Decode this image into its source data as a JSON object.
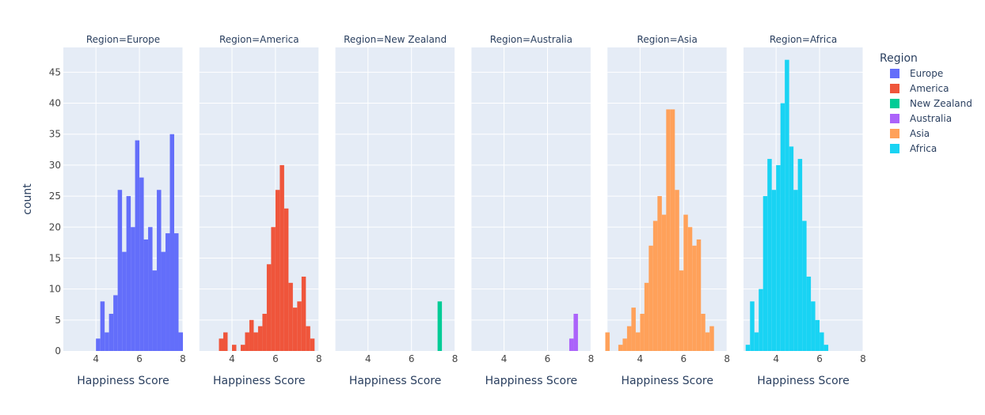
{
  "chart_data": {
    "type": "bar",
    "chart_kind": "faceted-histogram",
    "y_axis_title": "count",
    "x_axis_title": "Happiness Score",
    "x_range": [
      2.5,
      8
    ],
    "y_range": [
      0,
      49
    ],
    "x_ticks": [
      4,
      6,
      8
    ],
    "y_ticks": [
      0,
      5,
      10,
      15,
      20,
      25,
      30,
      35,
      40,
      45
    ],
    "bin_width": 0.2,
    "grid": true,
    "legend": {
      "title": "Region",
      "placement": "right"
    },
    "facets": [
      {
        "title": "Region=Europe",
        "name": "Europe",
        "color": "#636efa",
        "bins": [
          {
            "x0": 4.0,
            "count": 2
          },
          {
            "x0": 4.2,
            "count": 8
          },
          {
            "x0": 4.4,
            "count": 3
          },
          {
            "x0": 4.6,
            "count": 6
          },
          {
            "x0": 4.8,
            "count": 9
          },
          {
            "x0": 5.0,
            "count": 26
          },
          {
            "x0": 5.2,
            "count": 16
          },
          {
            "x0": 5.4,
            "count": 25
          },
          {
            "x0": 5.6,
            "count": 20
          },
          {
            "x0": 5.8,
            "count": 34
          },
          {
            "x0": 6.0,
            "count": 28
          },
          {
            "x0": 6.2,
            "count": 18
          },
          {
            "x0": 6.4,
            "count": 20
          },
          {
            "x0": 6.6,
            "count": 13
          },
          {
            "x0": 6.8,
            "count": 26
          },
          {
            "x0": 7.0,
            "count": 16
          },
          {
            "x0": 7.2,
            "count": 19
          },
          {
            "x0": 7.4,
            "count": 35
          },
          {
            "x0": 7.6,
            "count": 19
          },
          {
            "x0": 7.8,
            "count": 3
          }
        ]
      },
      {
        "title": "Region=America",
        "name": "America",
        "color": "#ef553b",
        "bins": [
          {
            "x0": 3.4,
            "count": 2
          },
          {
            "x0": 3.6,
            "count": 3
          },
          {
            "x0": 4.0,
            "count": 1
          },
          {
            "x0": 4.4,
            "count": 1
          },
          {
            "x0": 4.6,
            "count": 3
          },
          {
            "x0": 4.8,
            "count": 5
          },
          {
            "x0": 5.0,
            "count": 3
          },
          {
            "x0": 5.2,
            "count": 4
          },
          {
            "x0": 5.4,
            "count": 6
          },
          {
            "x0": 5.6,
            "count": 14
          },
          {
            "x0": 5.8,
            "count": 20
          },
          {
            "x0": 6.0,
            "count": 26
          },
          {
            "x0": 6.2,
            "count": 30
          },
          {
            "x0": 6.4,
            "count": 23
          },
          {
            "x0": 6.6,
            "count": 11
          },
          {
            "x0": 6.8,
            "count": 7
          },
          {
            "x0": 7.0,
            "count": 8
          },
          {
            "x0": 7.2,
            "count": 12
          },
          {
            "x0": 7.4,
            "count": 4
          },
          {
            "x0": 7.6,
            "count": 2
          }
        ]
      },
      {
        "title": "Region=New Zealand",
        "name": "New Zealand",
        "color": "#00cc96",
        "bins": [
          {
            "x0": 7.2,
            "count": 8
          }
        ]
      },
      {
        "title": "Region=Australia",
        "name": "Australia",
        "color": "#ab63fa",
        "bins": [
          {
            "x0": 7.0,
            "count": 2
          },
          {
            "x0": 7.2,
            "count": 6
          }
        ]
      },
      {
        "title": "Region=Asia",
        "name": "Asia",
        "color": "#ffa15a",
        "bins": [
          {
            "x0": 2.4,
            "count": 3
          },
          {
            "x0": 2.6,
            "count": 0
          },
          {
            "x0": 2.8,
            "count": 0
          },
          {
            "x0": 3.0,
            "count": 1
          },
          {
            "x0": 3.2,
            "count": 2
          },
          {
            "x0": 3.4,
            "count": 4
          },
          {
            "x0": 3.6,
            "count": 7
          },
          {
            "x0": 3.8,
            "count": 3
          },
          {
            "x0": 4.0,
            "count": 6
          },
          {
            "x0": 4.2,
            "count": 11
          },
          {
            "x0": 4.4,
            "count": 17
          },
          {
            "x0": 4.6,
            "count": 21
          },
          {
            "x0": 4.8,
            "count": 25
          },
          {
            "x0": 5.0,
            "count": 22
          },
          {
            "x0": 5.2,
            "count": 39
          },
          {
            "x0": 5.4,
            "count": 39
          },
          {
            "x0": 5.6,
            "count": 26
          },
          {
            "x0": 5.8,
            "count": 13
          },
          {
            "x0": 6.0,
            "count": 22
          },
          {
            "x0": 6.2,
            "count": 20
          },
          {
            "x0": 6.4,
            "count": 17
          },
          {
            "x0": 6.6,
            "count": 18
          },
          {
            "x0": 6.8,
            "count": 6
          },
          {
            "x0": 7.0,
            "count": 3
          },
          {
            "x0": 7.2,
            "count": 4
          }
        ]
      },
      {
        "title": "Region=Africa",
        "name": "Africa",
        "color": "#19d3f3",
        "bins": [
          {
            "x0": 2.6,
            "count": 1
          },
          {
            "x0": 2.8,
            "count": 8
          },
          {
            "x0": 3.0,
            "count": 3
          },
          {
            "x0": 3.2,
            "count": 10
          },
          {
            "x0": 3.4,
            "count": 25
          },
          {
            "x0": 3.6,
            "count": 31
          },
          {
            "x0": 3.8,
            "count": 26
          },
          {
            "x0": 4.0,
            "count": 30
          },
          {
            "x0": 4.2,
            "count": 40
          },
          {
            "x0": 4.4,
            "count": 47
          },
          {
            "x0": 4.6,
            "count": 33
          },
          {
            "x0": 4.8,
            "count": 26
          },
          {
            "x0": 5.0,
            "count": 31
          },
          {
            "x0": 5.2,
            "count": 21
          },
          {
            "x0": 5.4,
            "count": 12
          },
          {
            "x0": 5.6,
            "count": 8
          },
          {
            "x0": 5.8,
            "count": 5
          },
          {
            "x0": 6.0,
            "count": 3
          },
          {
            "x0": 6.2,
            "count": 1
          }
        ]
      }
    ]
  }
}
